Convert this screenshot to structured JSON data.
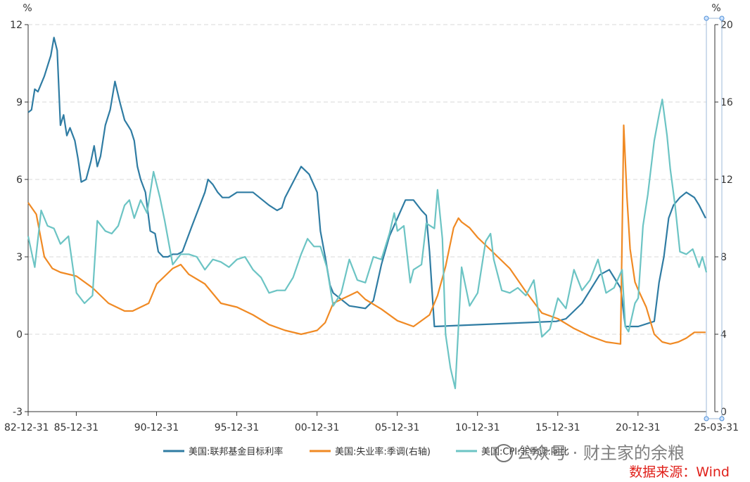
{
  "chart_data": {
    "type": "line",
    "left_axis_unit": "%",
    "right_axis_unit": "%",
    "x_tick_labels": [
      "82-12-31",
      "85-12-31",
      "90-12-31",
      "95-12-31",
      "00-12-31",
      "05-12-31",
      "10-12-31",
      "15-12-31",
      "20-12-31",
      "25-03-31"
    ],
    "x_tick_values": [
      1982.99,
      1985.99,
      1990.99,
      1995.99,
      2000.99,
      2005.99,
      2010.99,
      2015.99,
      2020.99,
      2025.25
    ],
    "xlim": [
      1982.99,
      2025.25
    ],
    "y_left": {
      "ticks": [
        -3,
        0,
        3,
        6,
        9,
        12
      ],
      "ylim": [
        -3,
        12
      ]
    },
    "y_right": {
      "ticks": [
        0,
        4,
        8,
        12,
        16,
        20
      ],
      "ylim": [
        0,
        20
      ]
    },
    "grid": true,
    "legend_position": "bottom",
    "series": [
      {
        "name": "美国:联邦基金目标利率",
        "axis": "left",
        "color": "#2f7ca3",
        "x": [
          1983.0,
          1983.2,
          1983.4,
          1983.6,
          1984.0,
          1984.4,
          1984.6,
          1984.8,
          1985.0,
          1985.2,
          1985.4,
          1985.6,
          1985.9,
          1986.1,
          1986.3,
          1986.6,
          1986.9,
          1987.1,
          1987.3,
          1987.5,
          1987.8,
          1988.1,
          1988.4,
          1988.7,
          1989.0,
          1989.2,
          1989.4,
          1989.6,
          1989.8,
          1990.0,
          1990.3,
          1990.6,
          1990.9,
          1991.1,
          1991.4,
          1991.7,
          1992.0,
          1992.3,
          1992.6,
          1993.2,
          1994.0,
          1994.2,
          1994.5,
          1994.8,
          1995.1,
          1995.5,
          1996.0,
          1997.0,
          1998.0,
          1998.5,
          1998.8,
          1999.0,
          1999.5,
          2000.0,
          2000.5,
          2001.0,
          2001.2,
          2001.5,
          2001.8,
          2002.0,
          2003.0,
          2004.0,
          2004.5,
          2005.0,
          2005.5,
          2006.0,
          2006.5,
          2007.0,
          2007.5,
          2007.8,
          2008.0,
          2008.3,
          2015.9,
          2016.5,
          2017.0,
          2017.5,
          2018.0,
          2018.6,
          2019.2,
          2019.6,
          2019.9,
          2020.2,
          2021.0,
          2022.0,
          2022.3,
          2022.6,
          2022.9,
          2023.2,
          2023.6,
          2024.0,
          2024.5,
          2024.8,
          2025.2
        ],
        "values": [
          8.6,
          8.7,
          9.5,
          9.4,
          10.0,
          10.8,
          11.5,
          11.0,
          8.1,
          8.5,
          7.7,
          8.0,
          7.5,
          6.8,
          5.9,
          6.0,
          6.7,
          7.3,
          6.5,
          6.9,
          8.1,
          8.7,
          9.8,
          9.0,
          8.3,
          8.1,
          7.9,
          7.5,
          6.5,
          6.0,
          5.5,
          4.0,
          3.9,
          3.2,
          3.0,
          3.0,
          3.1,
          3.1,
          3.2,
          4.2,
          5.5,
          6.0,
          5.8,
          5.5,
          5.3,
          5.3,
          5.5,
          5.5,
          5.0,
          4.8,
          4.9,
          5.3,
          5.9,
          6.5,
          6.2,
          5.5,
          4.0,
          3.0,
          1.9,
          1.6,
          1.1,
          1.0,
          1.3,
          2.7,
          3.8,
          4.5,
          5.2,
          5.2,
          4.8,
          4.6,
          3.2,
          0.3,
          0.5,
          0.6,
          0.9,
          1.2,
          1.7,
          2.3,
          2.5,
          2.1,
          1.8,
          0.3,
          0.3,
          0.5,
          2.0,
          3.0,
          4.5,
          5.0,
          5.3,
          5.5,
          5.3,
          5.0,
          4.5
        ]
      },
      {
        "name": "美国:失业率:季调(右轴)",
        "axis": "right",
        "color": "#f08a24",
        "x": [
          1982.99,
          1983.5,
          1984.0,
          1984.5,
          1985.0,
          1986.0,
          1987.0,
          1988.0,
          1989.0,
          1989.5,
          1990.0,
          1990.5,
          1991.0,
          1992.0,
          1992.5,
          1993.0,
          1994.0,
          1995.0,
          1996.0,
          1997.0,
          1998.0,
          1999.0,
          2000.0,
          2000.5,
          2001.0,
          2001.5,
          2002.0,
          2002.5,
          2003.0,
          2003.5,
          2004.0,
          2005.0,
          2006.0,
          2007.0,
          2008.0,
          2008.5,
          2009.0,
          2009.5,
          2009.8,
          2010.0,
          2010.5,
          2011.0,
          2012.0,
          2013.0,
          2014.0,
          2015.0,
          2016.0,
          2017.0,
          2018.0,
          2019.0,
          2019.9,
          2020.1,
          2020.3,
          2020.5,
          2020.8,
          2021.0,
          2021.5,
          2022.0,
          2022.5,
          2023.0,
          2023.5,
          2024.0,
          2024.5,
          2025.2
        ],
        "values": [
          10.8,
          10.2,
          8.0,
          7.4,
          7.2,
          7.0,
          6.4,
          5.6,
          5.2,
          5.2,
          5.4,
          5.6,
          6.6,
          7.4,
          7.6,
          7.1,
          6.6,
          5.6,
          5.4,
          5.0,
          4.5,
          4.2,
          4.0,
          4.1,
          4.2,
          4.6,
          5.6,
          5.8,
          6.0,
          6.2,
          5.8,
          5.3,
          4.7,
          4.4,
          5.0,
          6.0,
          7.5,
          9.5,
          10.0,
          9.8,
          9.5,
          9.0,
          8.2,
          7.4,
          6.2,
          5.1,
          4.8,
          4.3,
          3.9,
          3.6,
          3.5,
          14.8,
          11.1,
          8.4,
          6.7,
          6.3,
          5.4,
          4.0,
          3.6,
          3.5,
          3.6,
          3.8,
          4.1,
          4.1
        ]
      },
      {
        "name": "美国:CPI:非季调:同比",
        "axis": "left",
        "color": "#6cc4c4",
        "x": [
          1982.99,
          1983.4,
          1983.8,
          1984.2,
          1984.6,
          1985.0,
          1985.5,
          1986.0,
          1986.5,
          1987.0,
          1987.3,
          1987.8,
          1988.2,
          1988.6,
          1989.0,
          1989.3,
          1989.6,
          1990.0,
          1990.4,
          1990.8,
          1991.2,
          1991.5,
          1992.0,
          1992.5,
          1993.0,
          1993.5,
          1994.0,
          1994.5,
          1995.0,
          1995.5,
          1996.0,
          1996.5,
          1997.0,
          1997.5,
          1998.0,
          1998.5,
          1999.0,
          1999.5,
          2000.0,
          2000.4,
          2000.8,
          2001.2,
          2001.6,
          2002.0,
          2002.5,
          2003.0,
          2003.5,
          2004.0,
          2004.5,
          2005.0,
          2005.5,
          2005.8,
          2006.0,
          2006.4,
          2006.8,
          2007.0,
          2007.5,
          2007.8,
          2008.3,
          2008.5,
          2008.8,
          2009.0,
          2009.3,
          2009.6,
          2010.0,
          2010.5,
          2011.0,
          2011.5,
          2011.8,
          2012.0,
          2012.5,
          2013.0,
          2013.5,
          2014.0,
          2014.5,
          2015.0,
          2015.5,
          2016.0,
          2016.5,
          2017.0,
          2017.5,
          2018.0,
          2018.5,
          2019.0,
          2019.5,
          2020.0,
          2020.2,
          2020.4,
          2020.8,
          2021.0,
          2021.3,
          2021.6,
          2022.0,
          2022.3,
          2022.5,
          2022.8,
          2023.0,
          2023.3,
          2023.6,
          2024.0,
          2024.4,
          2024.8,
          2025.0,
          2025.25
        ],
        "values": [
          3.8,
          2.6,
          4.8,
          4.2,
          4.1,
          3.5,
          3.8,
          1.6,
          1.2,
          1.5,
          4.4,
          4.0,
          3.9,
          4.2,
          5.0,
          5.2,
          4.5,
          5.2,
          4.7,
          6.3,
          5.3,
          4.4,
          2.7,
          3.1,
          3.1,
          3.0,
          2.5,
          2.9,
          2.8,
          2.6,
          2.9,
          3.0,
          2.5,
          2.2,
          1.6,
          1.7,
          1.7,
          2.2,
          3.1,
          3.7,
          3.4,
          3.4,
          2.6,
          1.1,
          1.6,
          2.9,
          2.1,
          2.0,
          3.0,
          2.9,
          3.9,
          4.7,
          4.0,
          4.2,
          2.0,
          2.5,
          2.7,
          4.3,
          4.1,
          5.6,
          3.7,
          0.0,
          -1.3,
          -2.1,
          2.6,
          1.1,
          1.6,
          3.6,
          3.9,
          2.9,
          1.7,
          1.6,
          1.8,
          1.5,
          2.1,
          -0.1,
          0.2,
          1.4,
          1.0,
          2.5,
          1.7,
          2.1,
          2.9,
          1.6,
          1.8,
          2.5,
          0.3,
          0.1,
          1.2,
          1.4,
          4.2,
          5.4,
          7.5,
          8.5,
          9.1,
          7.7,
          6.4,
          5.0,
          3.2,
          3.1,
          3.3,
          2.6,
          3.0,
          2.4
        ]
      }
    ]
  },
  "watermark_text": "公众号 · 财主家的余粮",
  "source_text": "数据来源：Wind"
}
